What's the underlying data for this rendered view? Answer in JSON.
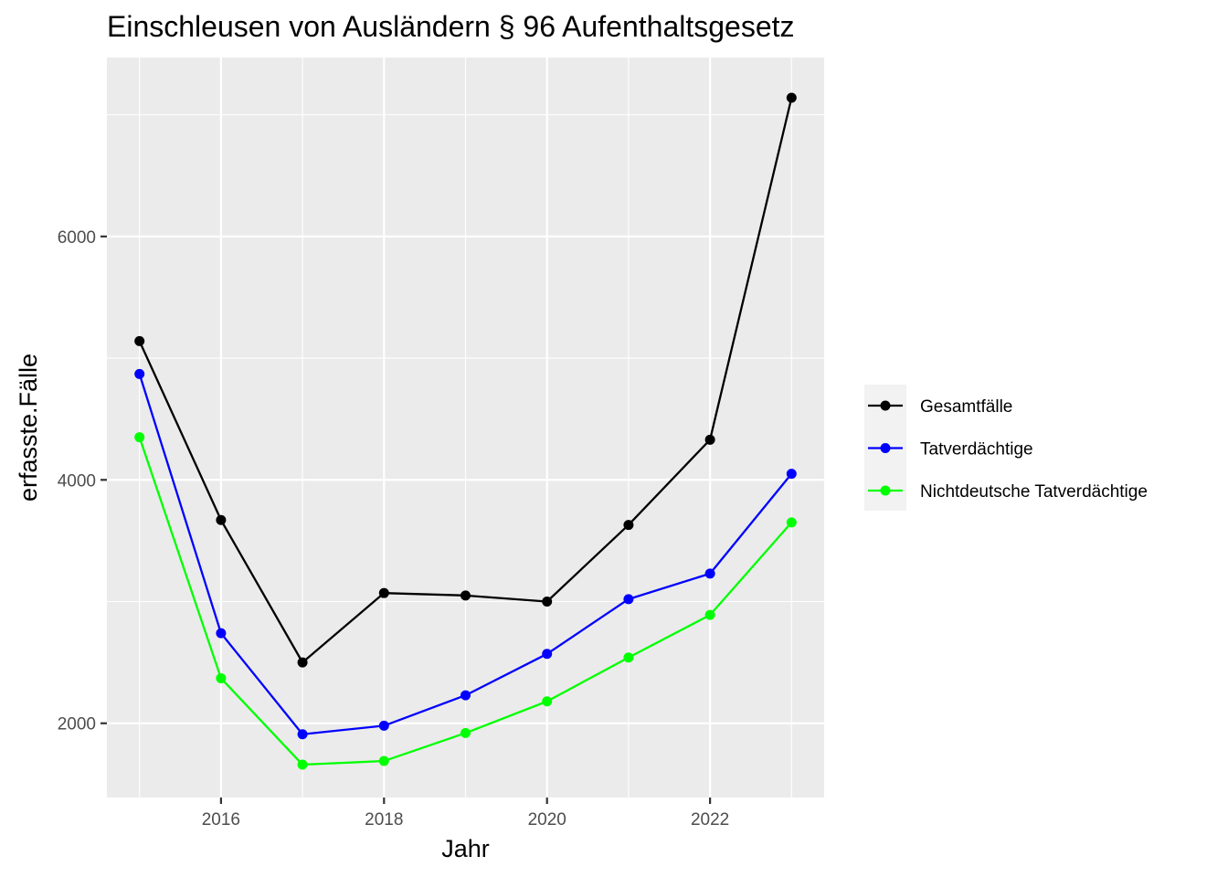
{
  "chart_data": {
    "type": "line",
    "title": "Einschleusen von Ausländern § 96 Aufenthaltsgesetz",
    "xlabel": "Jahr",
    "ylabel": "erfasste.Fälle",
    "x": [
      2015,
      2016,
      2017,
      2018,
      2019,
      2020,
      2021,
      2022,
      2023
    ],
    "xlim": [
      2014.6,
      2023.4
    ],
    "ylim": [
      1390,
      7470
    ],
    "x_ticks": [
      2016,
      2018,
      2020,
      2022
    ],
    "x_tick_labels": [
      "2016",
      "2018",
      "2020",
      "2022"
    ],
    "y_ticks": [
      2000,
      4000,
      6000
    ],
    "y_tick_labels": [
      "2000",
      "4000",
      "6000"
    ],
    "grid": true,
    "background": "#ebebeb",
    "legend_position": "right",
    "series": [
      {
        "name": "Gesamtfälle",
        "color": "#000000",
        "values": [
          5140,
          3670,
          2500,
          3070,
          3050,
          3000,
          3630,
          4330,
          7140
        ]
      },
      {
        "name": "Tatverdächtige",
        "color": "#0000ff",
        "values": [
          4870,
          2740,
          1910,
          1980,
          2230,
          2570,
          3020,
          3230,
          4050
        ]
      },
      {
        "name": "Nichtdeutsche Tatverdächtige",
        "color": "#00ff00",
        "values": [
          4350,
          2370,
          1660,
          1690,
          1920,
          2180,
          2540,
          2890,
          3650
        ]
      }
    ]
  }
}
